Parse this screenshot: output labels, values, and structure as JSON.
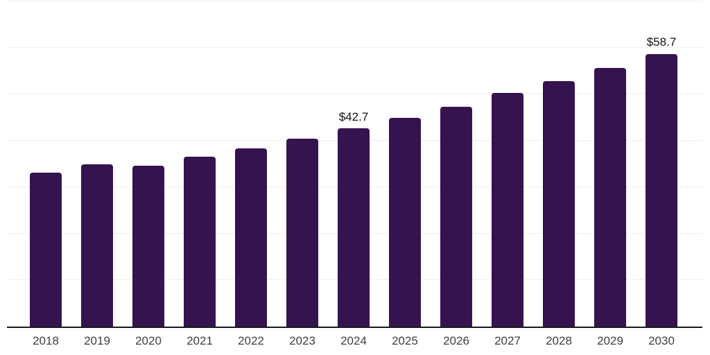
{
  "chart_data": {
    "type": "bar",
    "title": "",
    "xlabel": "",
    "ylabel": "",
    "categories": [
      "2018",
      "2019",
      "2020",
      "2021",
      "2022",
      "2023",
      "2024",
      "2025",
      "2026",
      "2027",
      "2028",
      "2029",
      "2030"
    ],
    "values": [
      33.1,
      34.9,
      34.7,
      36.5,
      38.4,
      40.5,
      42.7,
      45.0,
      47.3,
      50.3,
      52.9,
      55.6,
      58.7
    ],
    "annotations": [
      {
        "category": "2024",
        "label": "$42.7"
      },
      {
        "category": "2030",
        "label": "$58.7"
      }
    ],
    "ylim": [
      0,
      70
    ],
    "grid_step": 10,
    "grid": "on",
    "legend": "none",
    "y_tick_labels_visible": false,
    "colors": {
      "bar": "#35134f",
      "axis": "#1a1a1a",
      "gridline": "#ededed",
      "tick_label": "#3f3f3f",
      "value_label": "#111111",
      "background": "#ffffff"
    }
  }
}
